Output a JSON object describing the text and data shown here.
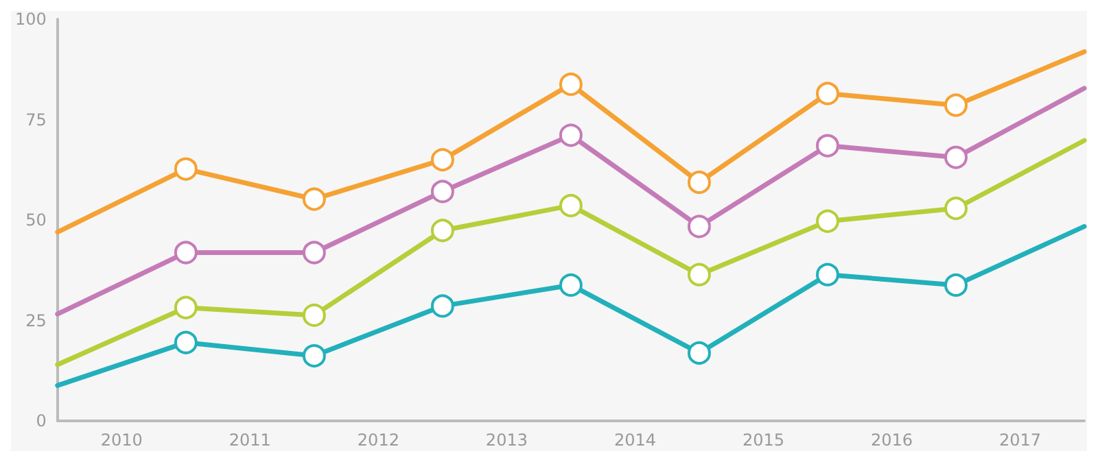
{
  "chart_data": {
    "type": "line",
    "x": [
      2009.5,
      2010.5,
      2011.5,
      2012.5,
      2013.5,
      2014.5,
      2015.5,
      2016.5,
      2017.5
    ],
    "xlim": [
      2009.5,
      2017.5
    ],
    "xticks": [
      2010,
      2011,
      2012,
      2013,
      2014,
      2015,
      2016,
      2017
    ],
    "ylim": [
      0,
      100
    ],
    "yticks": [
      0,
      25,
      50,
      75,
      100
    ],
    "grid": false,
    "marker": "circle",
    "line_style": "solid",
    "series": [
      {
        "color": "#f5a234",
        "values": [
          47,
          62.7,
          55.2,
          65,
          83.8,
          59.4,
          81.5,
          78.6,
          91.9
        ]
      },
      {
        "color": "#c57bb8",
        "values": [
          26.6,
          41.9,
          41.9,
          57.1,
          71.1,
          48.4,
          68.5,
          65.6,
          82.8
        ]
      },
      {
        "color": "#b5cf3a",
        "values": [
          14,
          28.2,
          26.3,
          47.4,
          53.6,
          36.4,
          49.7,
          52.9,
          69.8
        ]
      },
      {
        "color": "#22b0bb",
        "values": [
          8.8,
          19.5,
          16.2,
          28.6,
          33.8,
          16.9,
          36.4,
          33.8,
          48.4
        ]
      }
    ]
  }
}
